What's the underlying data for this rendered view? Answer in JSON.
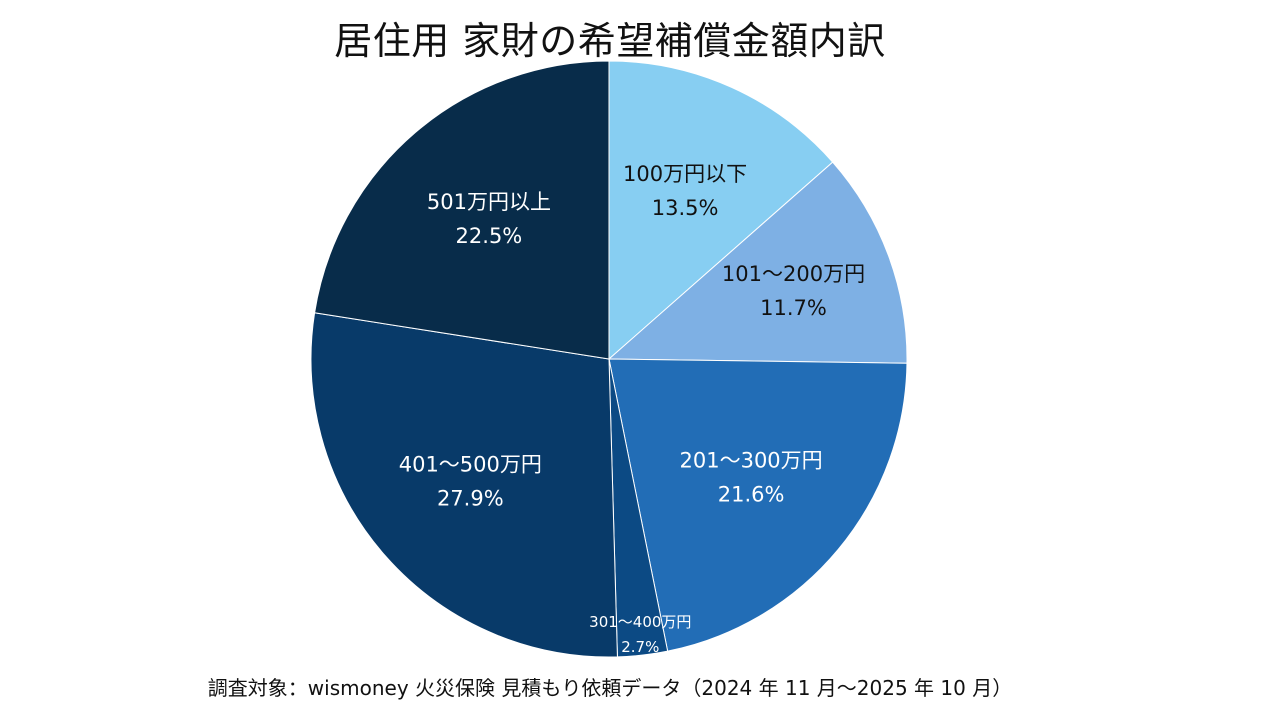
{
  "chart_data": {
    "type": "pie",
    "title": "居住用 家財の希望補償金額内訳",
    "start_angle": "top",
    "direction": "clockwise",
    "slices": [
      {
        "label": "100万円以下",
        "value": 13.5,
        "value_label": "13.5%",
        "color": "#87CEF2",
        "text_color": "#111111"
      },
      {
        "label": "101〜200万円",
        "value": 11.7,
        "value_label": "11.7%",
        "color": "#7EB0E4",
        "text_color": "#111111"
      },
      {
        "label": "201〜300万円",
        "value": 21.6,
        "value_label": "21.6%",
        "color": "#226DB6",
        "text_color": "#ffffff"
      },
      {
        "label": "301〜400万円",
        "value": 2.7,
        "value_label": "2.7%",
        "color": "#0C4A84",
        "text_color": "#ffffff"
      },
      {
        "label": "401〜500万円",
        "value": 27.9,
        "value_label": "27.9%",
        "color": "#083A69",
        "text_color": "#ffffff"
      },
      {
        "label": "501万円以上",
        "value": 22.5,
        "value_label": "22.5%",
        "color": "#082C4A",
        "text_color": "#ffffff"
      }
    ]
  },
  "footer": {
    "source": "調査対象：wismoney 火災保険 見積もり依頼データ（2024 年 11 月〜2025 年 10 月）"
  }
}
